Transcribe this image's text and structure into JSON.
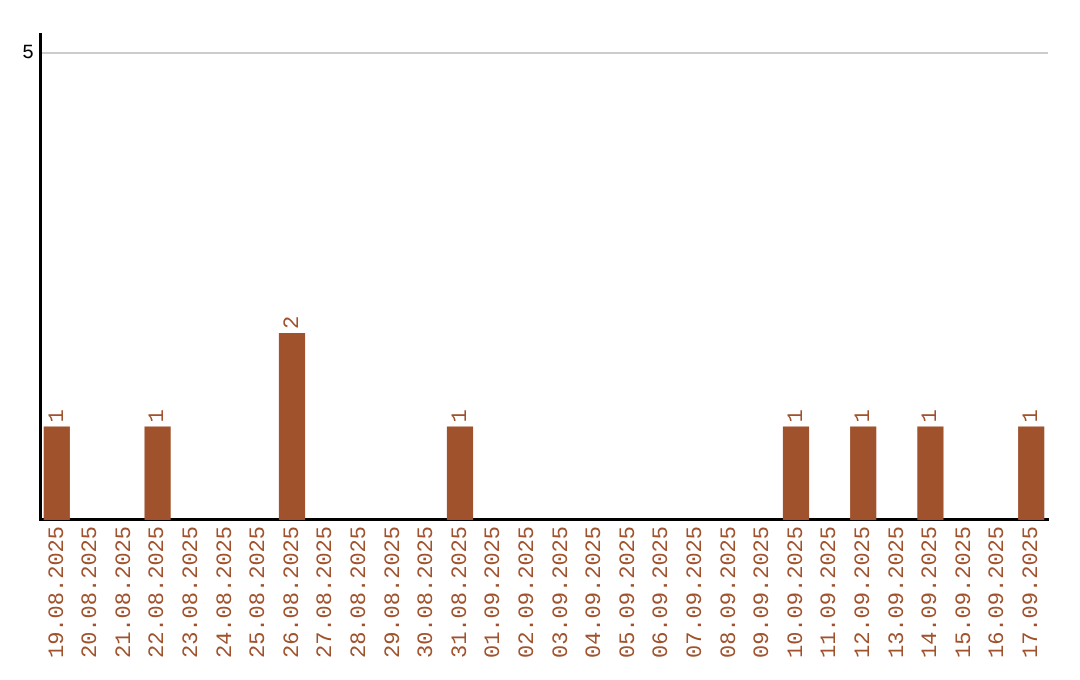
{
  "chart_data": {
    "type": "bar",
    "categories": [
      "19.08.2025",
      "20.08.2025",
      "21.08.2025",
      "22.08.2025",
      "23.08.2025",
      "24.08.2025",
      "25.08.2025",
      "26.08.2025",
      "27.08.2025",
      "28.08.2025",
      "29.08.2025",
      "30.08.2025",
      "31.08.2025",
      "01.09.2025",
      "02.09.2025",
      "03.09.2025",
      "04.09.2025",
      "05.09.2025",
      "06.09.2025",
      "07.09.2025",
      "08.09.2025",
      "09.09.2025",
      "10.09.2025",
      "11.09.2025",
      "12.09.2025",
      "13.09.2025",
      "14.09.2025",
      "15.09.2025",
      "16.09.2025",
      "17.09.2025"
    ],
    "values": [
      1,
      0,
      0,
      1,
      0,
      0,
      0,
      2,
      0,
      0,
      0,
      0,
      1,
      0,
      0,
      0,
      0,
      0,
      0,
      0,
      0,
      0,
      1,
      0,
      1,
      0,
      1,
      0,
      0,
      1
    ],
    "value_labels": [
      "1",
      null,
      null,
      "1",
      null,
      null,
      null,
      "2",
      null,
      null,
      null,
      null,
      "1",
      null,
      null,
      null,
      null,
      null,
      null,
      null,
      null,
      null,
      "1",
      null,
      "1",
      null,
      "1",
      null,
      null,
      "1"
    ],
    "color": "#a0522d",
    "ylim": [
      0,
      5.2
    ],
    "yticks": [
      5
    ],
    "grid": "y",
    "legend": false
  }
}
